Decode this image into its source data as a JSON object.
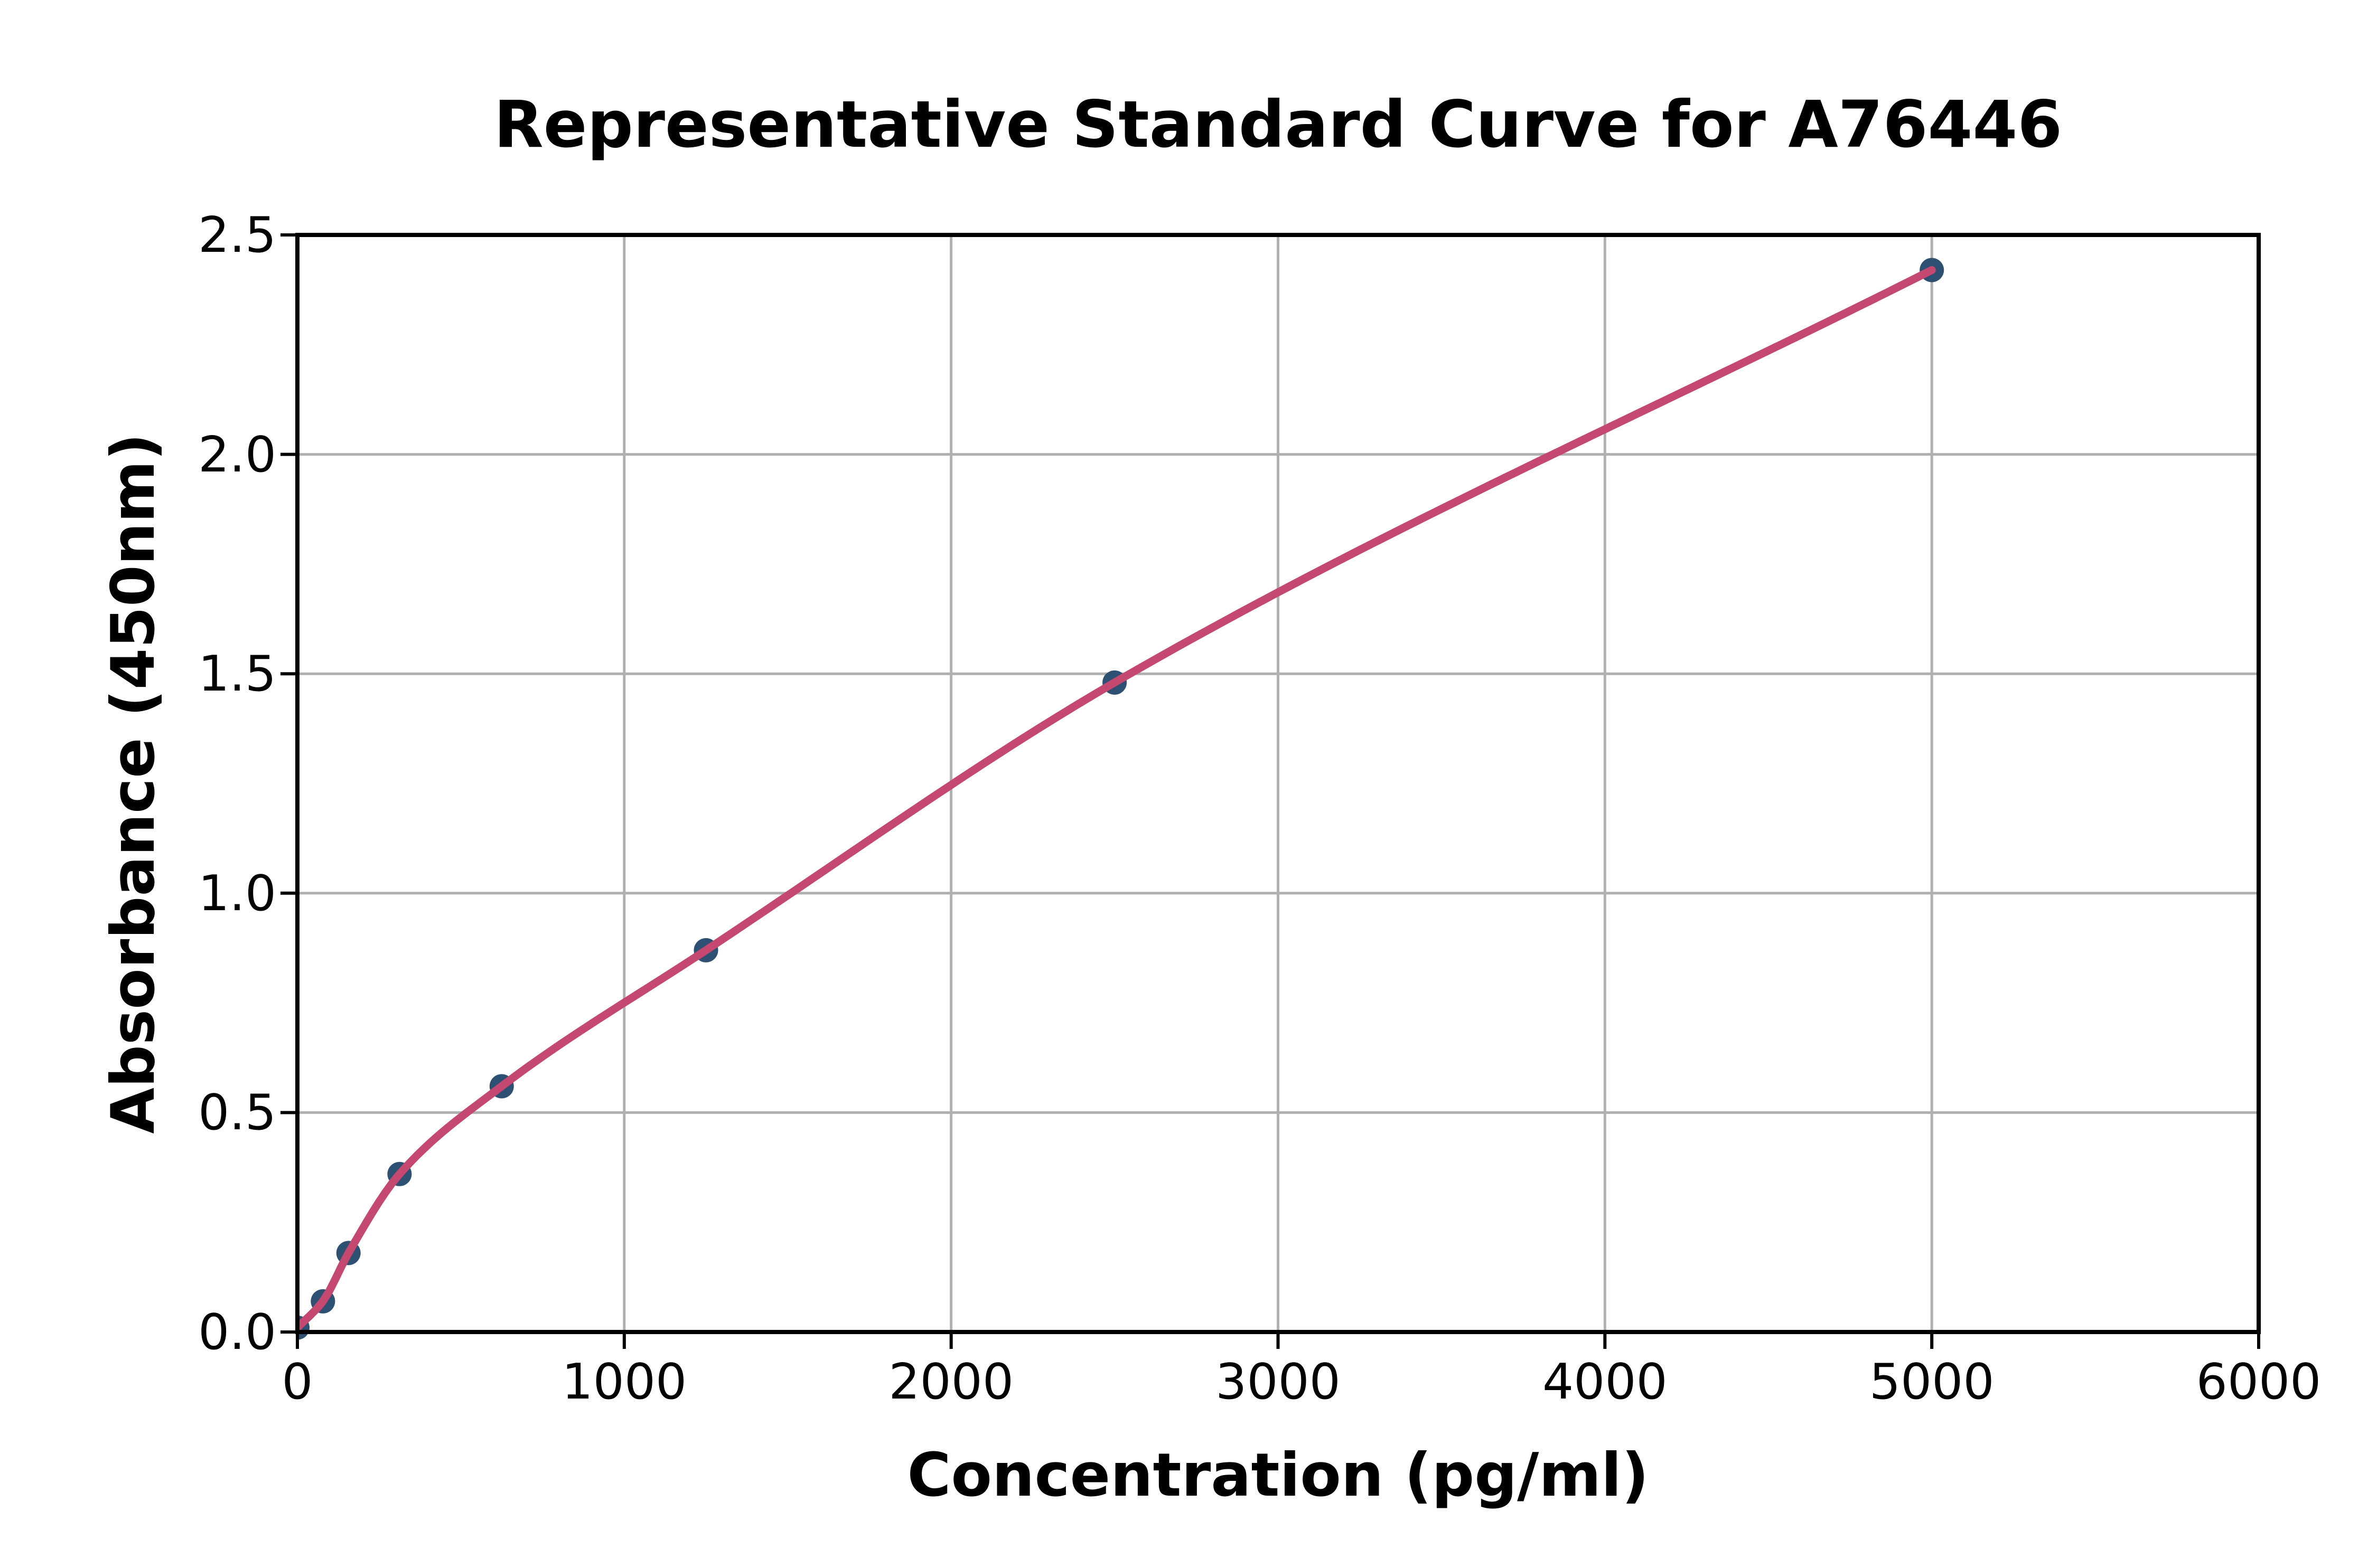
{
  "chart_data": {
    "type": "scatter",
    "title": "Representative Standard Curve for A76446",
    "xlabel": "Concentration (pg/ml)",
    "ylabel": "Absorbance (450nm)",
    "xlim": [
      0,
      6000
    ],
    "ylim": [
      0,
      2.5
    ],
    "xticks": [
      0,
      1000,
      2000,
      3000,
      4000,
      5000,
      6000
    ],
    "xtick_labels": [
      "0",
      "1000",
      "2000",
      "3000",
      "4000",
      "5000",
      "6000"
    ],
    "yticks": [
      0,
      0.5,
      1.0,
      1.5,
      2.0,
      2.5
    ],
    "ytick_labels": [
      "0.0",
      "0.5",
      "1.0",
      "1.5",
      "2.0",
      "2.5"
    ],
    "grid": true,
    "grid_color": "#b0b0b0",
    "axis_color": "#000000",
    "background": "#ffffff",
    "legend": false,
    "series": [
      {
        "name": "standard-data-points",
        "type": "scatter",
        "marker": "circle",
        "color": "#2e5072",
        "x": [
          0,
          78.125,
          156.25,
          312.5,
          625,
          1250,
          2500,
          5000
        ],
        "y": [
          0.01,
          0.07,
          0.18,
          0.36,
          0.56,
          0.87,
          1.48,
          2.42
        ]
      },
      {
        "name": "fitted-standard-curve",
        "type": "line",
        "color": "#c4486f",
        "description": "smooth fit through the scatter points, drawn from x=0 to x=5000"
      }
    ]
  }
}
